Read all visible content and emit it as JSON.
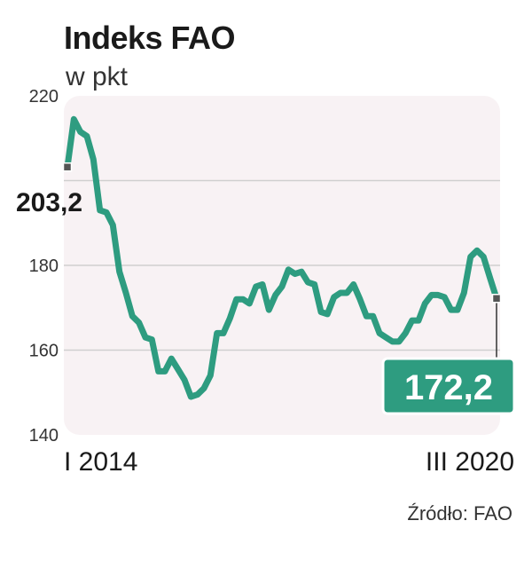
{
  "chart_data": {
    "type": "line",
    "title": "Indeks FAO",
    "subtitle": "w pkt",
    "source": "Źródło: FAO",
    "ylim": [
      140,
      220
    ],
    "yticks": [
      "140",
      "160",
      "180",
      "220"
    ],
    "grid": true,
    "x_start_label": "I 2014",
    "x_end_label": "III 2020",
    "start_label": "203,2",
    "end_label": "172,2",
    "line_color": "#2e9c80",
    "background_color": "#f8f2f4",
    "series": [
      {
        "values": [
          203.2,
          214.5,
          211.5,
          210.5,
          205.0,
          193.0,
          192.5,
          189.5,
          178.5,
          173.5,
          168.0,
          166.5,
          163.0,
          162.5,
          155.0,
          155.0,
          158.0,
          155.5,
          153.0,
          149.0,
          149.5,
          151.0,
          154.0,
          164.0,
          164.0,
          167.5,
          172.0,
          172.0,
          171.0,
          175.0,
          175.5,
          169.5,
          173.0,
          175.0,
          179.0,
          178.0,
          178.5,
          176.0,
          175.5,
          169.0,
          168.5,
          172.5,
          173.5,
          173.5,
          175.5,
          172.0,
          168.0,
          168.0,
          164.0,
          163.0,
          162.0,
          162.0,
          164.0,
          167.0,
          167.0,
          171.0,
          173.0,
          173.0,
          172.5,
          169.5,
          169.5,
          173.5,
          182.0,
          183.5,
          182.0,
          177.0,
          172.2
        ]
      }
    ]
  }
}
